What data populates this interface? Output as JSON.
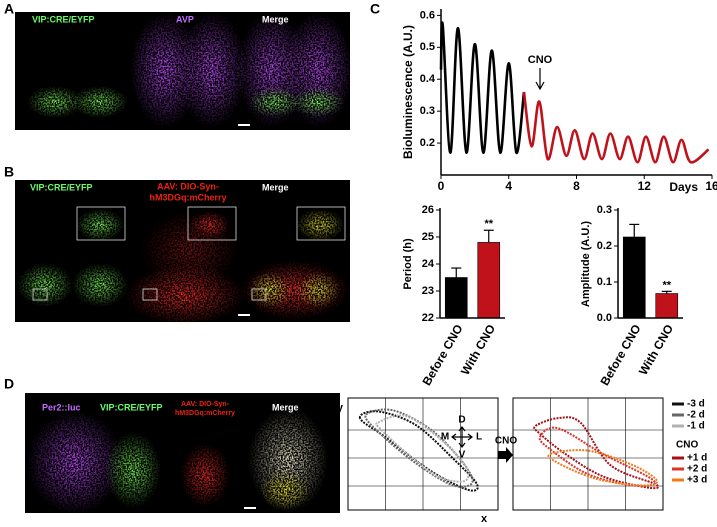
{
  "panels": {
    "A": {
      "label": "A",
      "images": [
        "VIP:CRE/EYFP",
        "AVP",
        "Merge"
      ]
    },
    "B": {
      "label": "B",
      "images": [
        "VIP:CRE/EYFP",
        [
          "AAV: DIO-Syn-",
          "hM3DGq:mCherry"
        ],
        "Merge"
      ]
    },
    "C": {
      "label": "C"
    },
    "D": {
      "label": "D",
      "images": [
        "Per2::luc",
        "VIP:CRE/EYFP",
        [
          "AAV: DIO-Syn-",
          "hM3DGq:mCherry"
        ],
        "Merge"
      ]
    }
  },
  "chart_data": [
    {
      "type": "line",
      "xlabel": "Days",
      "ylabel": "Bioluminescence (A.U.)",
      "annotation": "CNO",
      "xlim": [
        0,
        16
      ],
      "ylim": [
        0.1,
        0.62
      ],
      "xticks": [
        0,
        4,
        8,
        12,
        16
      ],
      "yticks": [
        0.2,
        0.3,
        0.4,
        0.5,
        0.6
      ],
      "series": [
        {
          "color": "#000000",
          "x": [
            0,
            0.1,
            0.55,
            1.0,
            1.5,
            2.0,
            2.5,
            3.0,
            3.5,
            4.0,
            4.45,
            4.9
          ],
          "values": [
            0.43,
            0.57,
            0.17,
            0.56,
            0.17,
            0.51,
            0.17,
            0.49,
            0.17,
            0.45,
            0.17,
            0.36
          ]
        },
        {
          "color": "#c0121b",
          "x": [
            4.9,
            5.35,
            5.8,
            6.3,
            6.85,
            7.4,
            7.9,
            8.45,
            8.95,
            9.5,
            10.0,
            10.55,
            11.05,
            11.6,
            12.1,
            12.65,
            13.15,
            13.7,
            14.2,
            14.75,
            15.8
          ],
          "values": [
            0.36,
            0.19,
            0.33,
            0.15,
            0.25,
            0.16,
            0.24,
            0.15,
            0.23,
            0.15,
            0.23,
            0.15,
            0.22,
            0.14,
            0.22,
            0.14,
            0.22,
            0.14,
            0.21,
            0.14,
            0.18
          ]
        }
      ]
    },
    {
      "type": "bar",
      "ylabel": "Period (h)",
      "categories": [
        "Before CNO",
        "With CNO"
      ],
      "values": [
        23.5,
        24.8
      ],
      "errors": [
        0.35,
        0.45
      ],
      "colors": [
        "#000000",
        "#c0121b"
      ],
      "ylim": [
        22,
        26
      ],
      "yticks": [
        22,
        23,
        24,
        25,
        26
      ],
      "annotation": "**"
    },
    {
      "type": "bar",
      "ylabel": "Amplitude (A.U.)",
      "categories": [
        "Before CNO",
        "With CNO"
      ],
      "values": [
        0.225,
        0.068
      ],
      "errors": [
        0.035,
        0.006
      ],
      "colors": [
        "#000000",
        "#c0121b"
      ],
      "ylim": [
        0,
        0.3
      ],
      "yticks": [
        {
          "value": 0,
          "label": "0.0"
        },
        0.1,
        0.2,
        0.3
      ],
      "annotation": "**"
    },
    {
      "type": "trajectory",
      "xlabel": "x",
      "ylabel": "y",
      "annotations": [
        "D",
        "V",
        "M",
        "L"
      ],
      "xlim": [
        0,
        10
      ],
      "ylim": [
        0,
        10
      ],
      "series": [
        {
          "name": "-3 d",
          "color": "#111111",
          "x": [
            0.8,
            2,
            4.5,
            7,
            8.6,
            8,
            5.5,
            2.5
          ],
          "values": [
            8.2,
            8.8,
            7.6,
            4.6,
            2.3,
            1.8,
            3.5,
            6.5
          ]
        },
        {
          "name": "-2 d",
          "color": "#666666",
          "x": [
            1.2,
            3,
            5.5,
            7.5,
            8.3,
            7,
            4.5,
            2
          ],
          "values": [
            8.5,
            8.9,
            7.2,
            4.5,
            2.5,
            2.2,
            4.2,
            7
          ]
        },
        {
          "name": "-1 d",
          "color": "#b0b0b0",
          "x": [
            2,
            3.8,
            6,
            7.8,
            7.8,
            6,
            3.8,
            2.2
          ],
          "values": [
            7.8,
            8.4,
            6.5,
            4,
            2.6,
            3,
            5.2,
            7.2
          ]
        }
      ]
    },
    {
      "type": "trajectory",
      "legend_title": "CNO",
      "annotation": "CNO",
      "xlim": [
        0,
        10
      ],
      "ylim": [
        0,
        10
      ],
      "series": [
        {
          "name": "+1 d",
          "color": "#a50f15",
          "x": [
            1.5,
            3,
            4.5,
            6.5,
            9.5,
            9,
            6,
            3.5,
            1.8
          ],
          "values": [
            7.5,
            8.2,
            7.8,
            4,
            2.3,
            2,
            3,
            5,
            6.8
          ]
        },
        {
          "name": "+2 d",
          "color": "#e0302a",
          "x": [
            1.8,
            3,
            6,
            9.4,
            8,
            5,
            2.5
          ],
          "values": [
            6.5,
            7.3,
            5,
            2.6,
            2.2,
            3.2,
            5.4
          ]
        },
        {
          "name": "+3 d",
          "color": "#f07a1a",
          "x": [
            2.5,
            5,
            8,
            9.6,
            8.5,
            5.5,
            3
          ],
          "values": [
            5,
            5.3,
            4,
            2.6,
            2.2,
            2.8,
            4.2
          ]
        }
      ]
    }
  ]
}
